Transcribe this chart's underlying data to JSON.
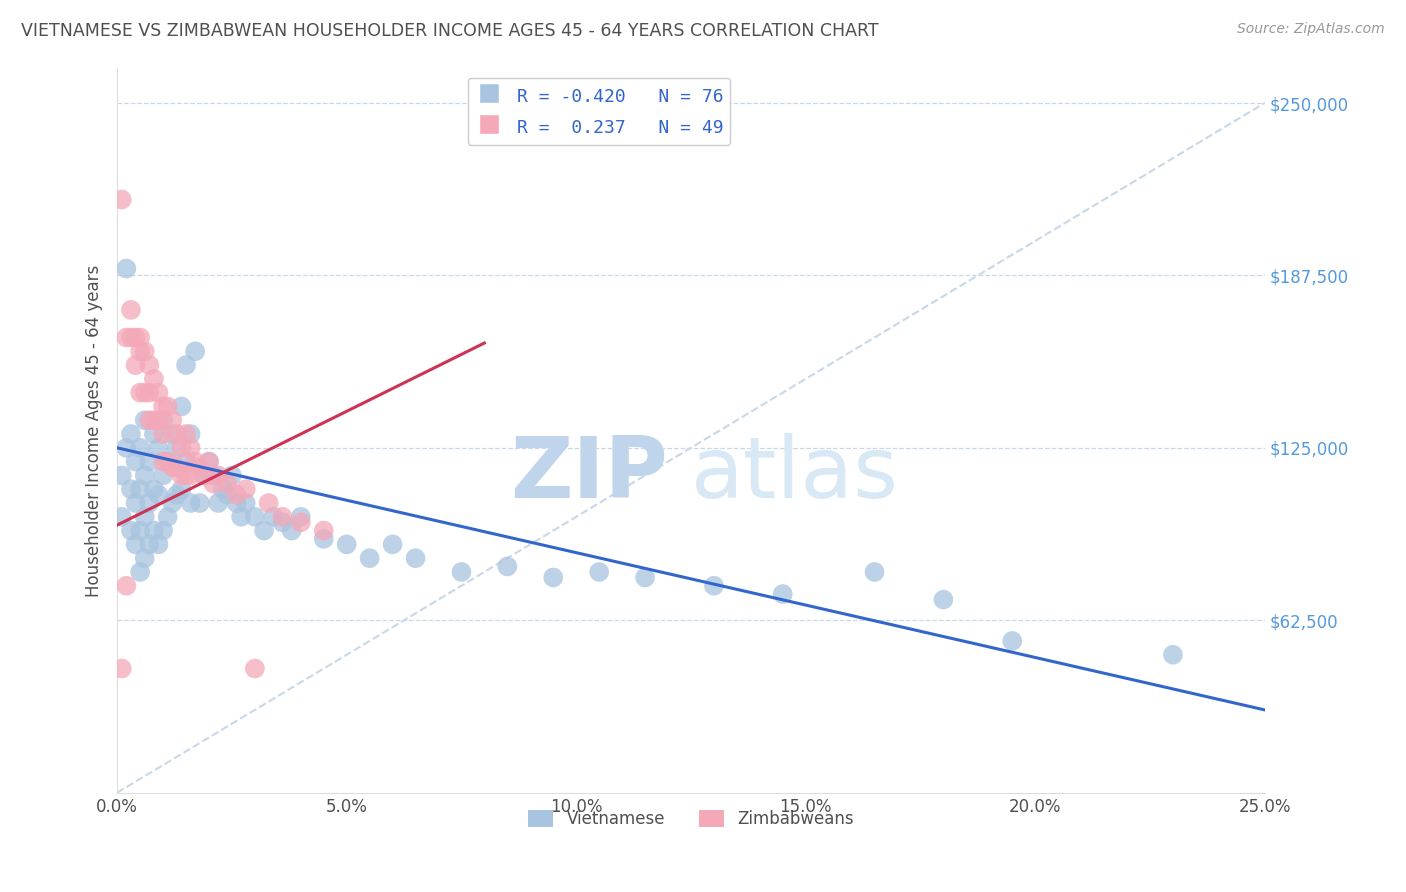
{
  "title": "VIETNAMESE VS ZIMBABWEAN HOUSEHOLDER INCOME AGES 45 - 64 YEARS CORRELATION CHART",
  "source": "Source: ZipAtlas.com",
  "ylabel": "Householder Income Ages 45 - 64 years",
  "xlim": [
    0.0,
    0.25
  ],
  "ylim": [
    0,
    262500
  ],
  "yticks": [
    62500,
    125000,
    187500,
    250000
  ],
  "ytick_labels": [
    "$62,500",
    "$125,000",
    "$187,500",
    "$250,000"
  ],
  "xtick_labels": [
    "0.0%",
    "",
    "5.0%",
    "",
    "10.0%",
    "",
    "15.0%",
    "",
    "20.0%",
    "",
    "25.0%"
  ],
  "xticks": [
    0.0,
    0.025,
    0.05,
    0.075,
    0.1,
    0.125,
    0.15,
    0.175,
    0.2,
    0.225,
    0.25
  ],
  "legend_r_blue": "-0.420",
  "legend_n_blue": "76",
  "legend_r_pink": "0.237",
  "legend_n_pink": "49",
  "blue_color": "#a8c4e0",
  "pink_color": "#f4a8b8",
  "blue_line_color": "#3366cc",
  "pink_line_color": "#cc3355",
  "ref_line_color": "#c8d8e8",
  "watermark_zip": "ZIP",
  "watermark_atlas": "atlas",
  "watermark_color": "#d0e4f7",
  "background_color": "#ffffff",
  "title_color": "#505050",
  "axis_label_color": "#505050",
  "tick_label_color_y": "#5599dd",
  "tick_label_color_x": "#505050",
  "blue_scatter_x": [
    0.001,
    0.001,
    0.002,
    0.002,
    0.003,
    0.003,
    0.003,
    0.004,
    0.004,
    0.004,
    0.005,
    0.005,
    0.005,
    0.005,
    0.006,
    0.006,
    0.006,
    0.006,
    0.007,
    0.007,
    0.007,
    0.008,
    0.008,
    0.008,
    0.009,
    0.009,
    0.009,
    0.01,
    0.01,
    0.01,
    0.011,
    0.011,
    0.012,
    0.012,
    0.013,
    0.013,
    0.014,
    0.014,
    0.015,
    0.015,
    0.016,
    0.016,
    0.017,
    0.018,
    0.019,
    0.02,
    0.021,
    0.022,
    0.023,
    0.024,
    0.025,
    0.026,
    0.027,
    0.028,
    0.03,
    0.032,
    0.034,
    0.036,
    0.038,
    0.04,
    0.045,
    0.05,
    0.055,
    0.06,
    0.065,
    0.075,
    0.085,
    0.095,
    0.105,
    0.115,
    0.13,
    0.145,
    0.165,
    0.18,
    0.195,
    0.23
  ],
  "blue_scatter_y": [
    115000,
    100000,
    190000,
    125000,
    130000,
    110000,
    95000,
    120000,
    105000,
    90000,
    125000,
    110000,
    95000,
    80000,
    135000,
    115000,
    100000,
    85000,
    120000,
    105000,
    90000,
    130000,
    110000,
    95000,
    125000,
    108000,
    90000,
    135000,
    115000,
    95000,
    120000,
    100000,
    130000,
    105000,
    125000,
    108000,
    140000,
    110000,
    155000,
    120000,
    130000,
    105000,
    160000,
    105000,
    115000,
    120000,
    115000,
    105000,
    110000,
    108000,
    115000,
    105000,
    100000,
    105000,
    100000,
    95000,
    100000,
    98000,
    95000,
    100000,
    92000,
    90000,
    85000,
    90000,
    85000,
    80000,
    82000,
    78000,
    80000,
    78000,
    75000,
    72000,
    80000,
    70000,
    55000,
    50000
  ],
  "pink_scatter_x": [
    0.001,
    0.001,
    0.002,
    0.002,
    0.003,
    0.003,
    0.004,
    0.004,
    0.005,
    0.005,
    0.005,
    0.006,
    0.006,
    0.007,
    0.007,
    0.007,
    0.008,
    0.008,
    0.009,
    0.009,
    0.01,
    0.01,
    0.01,
    0.011,
    0.011,
    0.012,
    0.012,
    0.013,
    0.013,
    0.014,
    0.014,
    0.015,
    0.015,
    0.016,
    0.016,
    0.017,
    0.018,
    0.019,
    0.02,
    0.021,
    0.022,
    0.024,
    0.026,
    0.028,
    0.03,
    0.033,
    0.036,
    0.04,
    0.045
  ],
  "pink_scatter_y": [
    215000,
    45000,
    165000,
    75000,
    175000,
    165000,
    165000,
    155000,
    165000,
    160000,
    145000,
    160000,
    145000,
    155000,
    145000,
    135000,
    150000,
    135000,
    145000,
    135000,
    140000,
    130000,
    120000,
    140000,
    120000,
    135000,
    118000,
    130000,
    118000,
    125000,
    115000,
    130000,
    115000,
    125000,
    115000,
    120000,
    118000,
    115000,
    120000,
    112000,
    115000,
    112000,
    108000,
    110000,
    45000,
    105000,
    100000,
    98000,
    95000
  ],
  "blue_trend_x0": 0.0,
  "blue_trend_y0": 125000,
  "blue_trend_x1": 0.25,
  "blue_trend_y1": 30000,
  "pink_trend_x0": 0.0,
  "pink_trend_y0": 97000,
  "pink_trend_x1": 0.08,
  "pink_trend_y1": 163000
}
